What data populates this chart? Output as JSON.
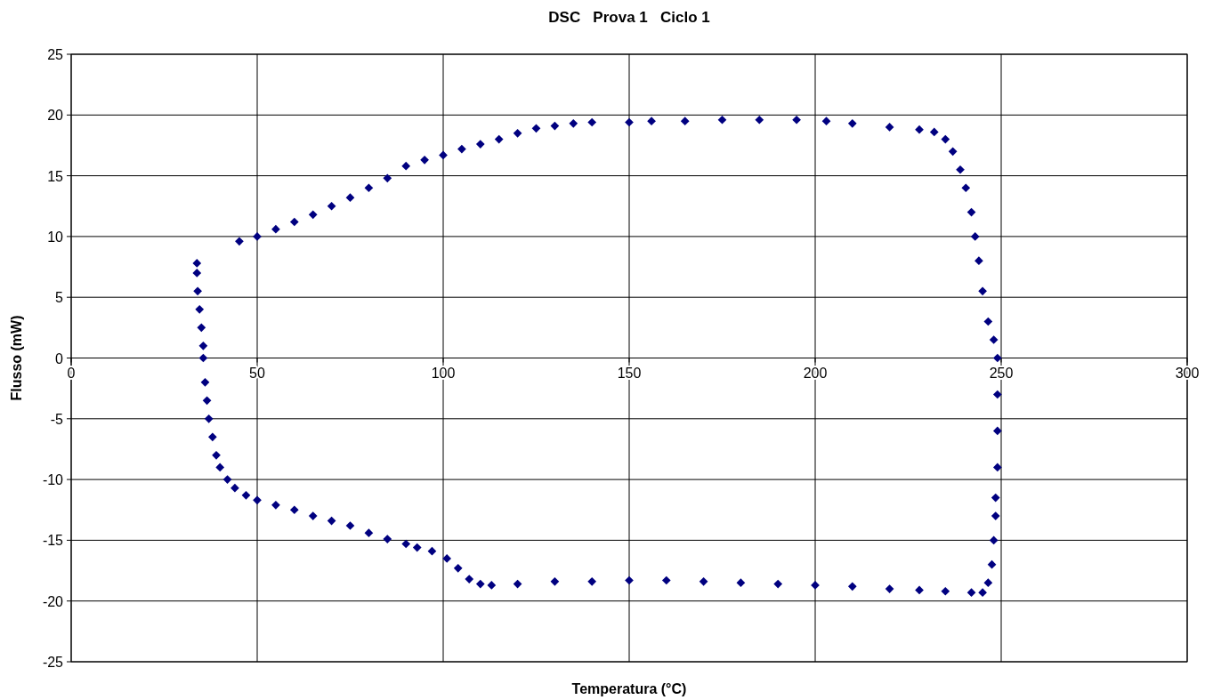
{
  "chart_data": {
    "type": "scatter",
    "title": "DSC   Prova 1   Ciclo 1",
    "xlabel": "Temperatura (°C)",
    "ylabel": "Flusso (mW)",
    "xlim": [
      0,
      300
    ],
    "ylim": [
      -25,
      25
    ],
    "xticks": [
      0,
      50,
      100,
      150,
      200,
      250,
      300
    ],
    "yticks": [
      -25,
      -20,
      -15,
      -10,
      -5,
      0,
      5,
      10,
      15,
      20,
      25
    ],
    "grid": true,
    "marker": "diamond",
    "series": [
      {
        "color": "#000080",
        "x": [
          45.2,
          50,
          55,
          60,
          65,
          70,
          75,
          80,
          85,
          90,
          95,
          100,
          105,
          110,
          115,
          120,
          125,
          130,
          135,
          140,
          150,
          156,
          165,
          175,
          185,
          195,
          203,
          210,
          220,
          228,
          232,
          235,
          237,
          239,
          240.5,
          242,
          243,
          244,
          245,
          246.5,
          248,
          249,
          249,
          249,
          249,
          248.5,
          248.5,
          248,
          247.5,
          246.5,
          245,
          242,
          235,
          228,
          220,
          210,
          200,
          190,
          180,
          170,
          160,
          150,
          140,
          130,
          120,
          113,
          110,
          107,
          104,
          101,
          97,
          93,
          90,
          85,
          80,
          75,
          70,
          65,
          60,
          55,
          50,
          47,
          44,
          42,
          40,
          39,
          38,
          37,
          36.5,
          36,
          35.5,
          35.5,
          35,
          34.5,
          34,
          33.8,
          33.8
        ],
        "values": [
          9.6,
          10.0,
          10.6,
          11.2,
          11.8,
          12.5,
          13.2,
          14.0,
          14.8,
          15.8,
          16.3,
          16.7,
          17.2,
          17.6,
          18.0,
          18.5,
          18.9,
          19.1,
          19.3,
          19.4,
          19.4,
          19.5,
          19.5,
          19.6,
          19.6,
          19.6,
          19.5,
          19.3,
          19.0,
          18.8,
          18.6,
          18.0,
          17.0,
          15.5,
          14.0,
          12.0,
          10.0,
          8.0,
          5.5,
          3.0,
          1.5,
          0,
          -3,
          -6,
          -9,
          -11.5,
          -13,
          -15,
          -17,
          -18.5,
          -19.3,
          -19.3,
          -19.2,
          -19.1,
          -19.0,
          -18.8,
          -18.7,
          -18.6,
          -18.5,
          -18.4,
          -18.3,
          -18.3,
          -18.4,
          -18.4,
          -18.6,
          -18.7,
          -18.6,
          -18.2,
          -17.3,
          -16.5,
          -15.9,
          -15.6,
          -15.3,
          -14.9,
          -14.4,
          -13.8,
          -13.4,
          -13.0,
          -12.5,
          -12.1,
          -11.7,
          -11.3,
          -10.7,
          -10.0,
          -9.0,
          -8.0,
          -6.5,
          -5.0,
          -3.5,
          -2.0,
          0,
          1.0,
          2.5,
          4.0,
          5.5,
          7.0,
          7.8
        ]
      }
    ]
  }
}
